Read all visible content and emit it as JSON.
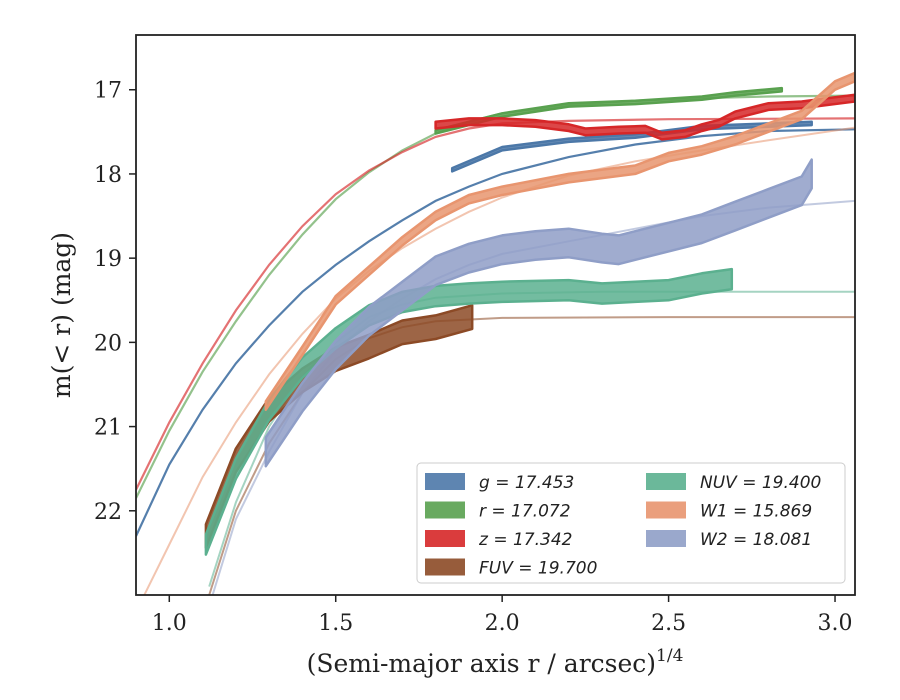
{
  "chart_data": {
    "type": "line",
    "xlabel": "(Semi-major axis r / arcsec)",
    "xlabel_exponent": "1/4",
    "ylabel": "m(< r) (mag)",
    "xlim": [
      0.9,
      3.06
    ],
    "ylim": [
      23.0,
      16.35
    ],
    "y_inverted": true,
    "x_ticks": [
      1.0,
      1.5,
      2.0,
      2.5,
      3.0
    ],
    "x_tick_labels": [
      "1.0",
      "1.5",
      "2.0",
      "2.5",
      "3.0"
    ],
    "y_ticks": [
      17,
      18,
      19,
      20,
      21,
      22
    ],
    "y_tick_labels": [
      "17",
      "18",
      "19",
      "20",
      "21",
      "22"
    ],
    "grid": false,
    "legend_position": "lower-right",
    "series": [
      {
        "name": "g = 17.453",
        "band": "g",
        "total_mag": "17.453",
        "color": "#4c78a8",
        "model": [
          [
            0.9,
            22.3
          ],
          [
            1.0,
            21.45
          ],
          [
            1.1,
            20.8
          ],
          [
            1.2,
            20.25
          ],
          [
            1.3,
            19.8
          ],
          [
            1.4,
            19.4
          ],
          [
            1.5,
            19.08
          ],
          [
            1.6,
            18.8
          ],
          [
            1.7,
            18.55
          ],
          [
            1.8,
            18.32
          ],
          [
            1.9,
            18.15
          ],
          [
            2.0,
            18.0
          ],
          [
            2.2,
            17.8
          ],
          [
            2.4,
            17.65
          ],
          [
            2.6,
            17.55
          ],
          [
            2.8,
            17.49
          ],
          [
            3.06,
            17.47
          ]
        ],
        "data": [
          [
            1.85,
            17.95
          ],
          [
            2.0,
            17.7
          ],
          [
            2.2,
            17.6
          ],
          [
            2.4,
            17.55
          ],
          [
            2.6,
            17.45
          ],
          [
            2.8,
            17.42
          ],
          [
            2.93,
            17.4
          ]
        ],
        "data_halfwidth": 0.02
      },
      {
        "name": "r = 17.072",
        "band": "r",
        "total_mag": "17.072",
        "color": "#59a14f",
        "model": [
          [
            0.9,
            21.85
          ],
          [
            1.0,
            21.05
          ],
          [
            1.1,
            20.35
          ],
          [
            1.2,
            19.75
          ],
          [
            1.3,
            19.2
          ],
          [
            1.4,
            18.72
          ],
          [
            1.5,
            18.3
          ],
          [
            1.6,
            17.98
          ],
          [
            1.7,
            17.72
          ],
          [
            1.8,
            17.52
          ],
          [
            1.9,
            17.38
          ],
          [
            2.0,
            17.28
          ],
          [
            2.2,
            17.18
          ],
          [
            2.4,
            17.13
          ],
          [
            2.6,
            17.1
          ],
          [
            2.8,
            17.08
          ],
          [
            3.06,
            17.07
          ]
        ],
        "data": [
          [
            1.8,
            17.5
          ],
          [
            2.0,
            17.3
          ],
          [
            2.2,
            17.18
          ],
          [
            2.4,
            17.15
          ],
          [
            2.6,
            17.1
          ],
          [
            2.7,
            17.05
          ],
          [
            2.84,
            17.0
          ]
        ],
        "data_halfwidth": 0.02
      },
      {
        "name": "z = 17.342",
        "band": "z",
        "total_mag": "17.342",
        "color": "#d62728",
        "model": [
          [
            0.9,
            21.75
          ],
          [
            1.0,
            20.95
          ],
          [
            1.1,
            20.25
          ],
          [
            1.2,
            19.62
          ],
          [
            1.3,
            19.08
          ],
          [
            1.4,
            18.62
          ],
          [
            1.5,
            18.24
          ],
          [
            1.6,
            17.96
          ],
          [
            1.7,
            17.74
          ],
          [
            1.8,
            17.56
          ],
          [
            1.9,
            17.46
          ],
          [
            2.0,
            17.4
          ],
          [
            2.2,
            17.37
          ],
          [
            2.5,
            17.35
          ],
          [
            3.06,
            17.34
          ]
        ],
        "data": [
          [
            1.8,
            17.42
          ],
          [
            1.9,
            17.38
          ],
          [
            2.0,
            17.38
          ],
          [
            2.1,
            17.4
          ],
          [
            2.2,
            17.45
          ],
          [
            2.25,
            17.5
          ],
          [
            2.35,
            17.48
          ],
          [
            2.43,
            17.47
          ],
          [
            2.48,
            17.55
          ],
          [
            2.55,
            17.52
          ],
          [
            2.6,
            17.45
          ],
          [
            2.65,
            17.4
          ],
          [
            2.7,
            17.3
          ],
          [
            2.8,
            17.2
          ],
          [
            2.9,
            17.18
          ],
          [
            3.06,
            17.1
          ]
        ],
        "data_halfwidth": 0.04
      },
      {
        "name": "FUV = 19.700",
        "band": "FUV",
        "total_mag": "19.700",
        "color": "#8c4a26",
        "model": [
          [
            1.12,
            23.0
          ],
          [
            1.2,
            22.0
          ],
          [
            1.3,
            21.2
          ],
          [
            1.4,
            20.6
          ],
          [
            1.5,
            20.2
          ],
          [
            1.6,
            19.95
          ],
          [
            1.7,
            19.82
          ],
          [
            1.8,
            19.75
          ],
          [
            2.0,
            19.71
          ],
          [
            2.5,
            19.7
          ],
          [
            3.06,
            19.7
          ]
        ],
        "data": [
          [
            1.11,
            22.3
          ],
          [
            1.2,
            21.4
          ],
          [
            1.3,
            20.8
          ],
          [
            1.4,
            20.45
          ],
          [
            1.5,
            20.2
          ],
          [
            1.6,
            20.05
          ],
          [
            1.7,
            19.88
          ],
          [
            1.8,
            19.82
          ],
          [
            1.91,
            19.7
          ]
        ],
        "data_halfwidth": 0.14
      },
      {
        "name": "NUV = 19.400",
        "band": "NUV",
        "total_mag": "19.400",
        "color": "#5bb08f",
        "model": [
          [
            1.12,
            22.9
          ],
          [
            1.2,
            21.9
          ],
          [
            1.3,
            21.0
          ],
          [
            1.4,
            20.4
          ],
          [
            1.5,
            20.0
          ],
          [
            1.6,
            19.7
          ],
          [
            1.7,
            19.55
          ],
          [
            1.8,
            19.47
          ],
          [
            2.0,
            19.42
          ],
          [
            2.3,
            19.4
          ],
          [
            3.06,
            19.4
          ]
        ],
        "data": [
          [
            1.11,
            22.4
          ],
          [
            1.2,
            21.5
          ],
          [
            1.3,
            20.8
          ],
          [
            1.4,
            20.3
          ],
          [
            1.5,
            19.95
          ],
          [
            1.6,
            19.68
          ],
          [
            1.7,
            19.52
          ],
          [
            1.8,
            19.45
          ],
          [
            1.9,
            19.42
          ],
          [
            2.0,
            19.4
          ],
          [
            2.2,
            19.38
          ],
          [
            2.3,
            19.42
          ],
          [
            2.4,
            19.4
          ],
          [
            2.5,
            19.38
          ],
          [
            2.6,
            19.3
          ],
          [
            2.69,
            19.25
          ]
        ],
        "data_halfwidth": 0.12
      },
      {
        "name": "W1 = 15.869",
        "band": "W1",
        "total_mag": "15.869",
        "color": "#e8956f",
        "model": [
          [
            0.9,
            23.2
          ],
          [
            1.0,
            22.4
          ],
          [
            1.1,
            21.6
          ],
          [
            1.2,
            20.95
          ],
          [
            1.3,
            20.38
          ],
          [
            1.4,
            19.9
          ],
          [
            1.5,
            19.48
          ],
          [
            1.6,
            19.15
          ],
          [
            1.7,
            18.88
          ],
          [
            1.8,
            18.65
          ],
          [
            1.9,
            18.45
          ],
          [
            2.0,
            18.28
          ],
          [
            2.2,
            18.02
          ],
          [
            2.4,
            17.85
          ],
          [
            2.6,
            17.72
          ],
          [
            2.8,
            17.6
          ],
          [
            3.06,
            17.45
          ]
        ],
        "data": [
          [
            1.29,
            20.75
          ],
          [
            1.4,
            20.1
          ],
          [
            1.5,
            19.5
          ],
          [
            1.6,
            19.15
          ],
          [
            1.7,
            18.8
          ],
          [
            1.8,
            18.5
          ],
          [
            1.9,
            18.3
          ],
          [
            2.0,
            18.2
          ],
          [
            2.2,
            18.05
          ],
          [
            2.4,
            17.95
          ],
          [
            2.5,
            17.8
          ],
          [
            2.6,
            17.72
          ],
          [
            2.7,
            17.6
          ],
          [
            2.8,
            17.45
          ],
          [
            2.9,
            17.3
          ],
          [
            3.0,
            16.95
          ],
          [
            3.06,
            16.85
          ]
        ],
        "data_halfwidth": 0.05
      },
      {
        "name": "W2 = 18.081",
        "band": "W2",
        "total_mag": "18.081",
        "color": "#8f9ec7",
        "model": [
          [
            1.13,
            23.0
          ],
          [
            1.2,
            22.1
          ],
          [
            1.3,
            21.3
          ],
          [
            1.4,
            20.6
          ],
          [
            1.5,
            20.1
          ],
          [
            1.6,
            19.75
          ],
          [
            1.7,
            19.48
          ],
          [
            1.8,
            19.25
          ],
          [
            1.9,
            19.08
          ],
          [
            2.0,
            18.95
          ],
          [
            2.2,
            18.8
          ],
          [
            2.4,
            18.65
          ],
          [
            2.6,
            18.5
          ],
          [
            2.8,
            18.4
          ],
          [
            3.06,
            18.32
          ]
        ],
        "data": [
          [
            1.29,
            21.3
          ],
          [
            1.4,
            20.65
          ],
          [
            1.5,
            20.15
          ],
          [
            1.6,
            19.75
          ],
          [
            1.7,
            19.45
          ],
          [
            1.8,
            19.15
          ],
          [
            1.9,
            19.0
          ],
          [
            2.0,
            18.9
          ],
          [
            2.1,
            18.85
          ],
          [
            2.2,
            18.82
          ],
          [
            2.3,
            18.88
          ],
          [
            2.35,
            18.9
          ],
          [
            2.4,
            18.85
          ],
          [
            2.5,
            18.75
          ],
          [
            2.6,
            18.65
          ],
          [
            2.7,
            18.5
          ],
          [
            2.8,
            18.35
          ],
          [
            2.9,
            18.2
          ],
          [
            2.93,
            18.0
          ]
        ],
        "data_halfwidth": 0.17
      }
    ]
  }
}
